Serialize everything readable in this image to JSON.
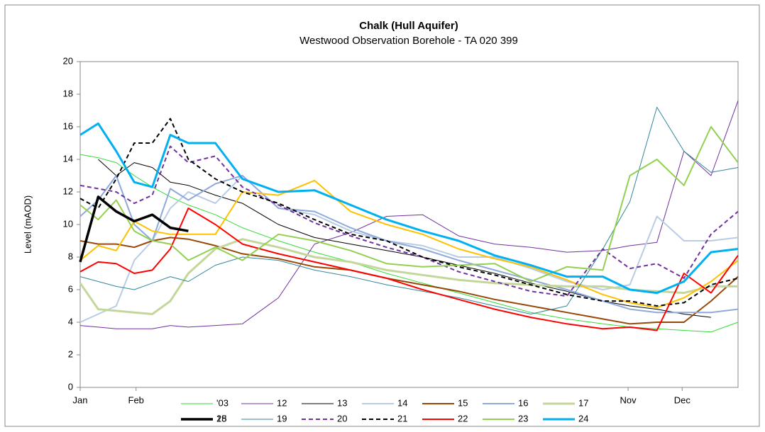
{
  "chart_data": {
    "type": "line",
    "title": "Chalk (Hull Aquifer)",
    "subtitle": "Westwood Observation Borehole - TA 020 399",
    "y_label": "Level (mAOD)",
    "x": [
      0,
      10,
      20,
      30,
      40,
      50,
      60,
      75,
      90,
      110,
      130,
      150,
      170,
      190,
      210,
      230,
      250,
      270,
      290,
      305,
      320,
      335,
      350,
      365
    ],
    "xlim": [
      0,
      365
    ],
    "xticks": [
      {
        "value": 0,
        "label": "Jan"
      },
      {
        "value": 31,
        "label": "Feb"
      },
      {
        "value": 304,
        "label": "Nov"
      },
      {
        "value": 334,
        "label": "Dec"
      }
    ],
    "ylim": [
      0,
      20
    ],
    "yticks": [
      0,
      2,
      4,
      6,
      8,
      10,
      12,
      14,
      16,
      18,
      20
    ],
    "grid": false,
    "legend": "bottom",
    "series": [
      {
        "name": "'03",
        "color": "#33dd33",
        "width": 1,
        "dash": false,
        "values": [
          14.3,
          14.1,
          13.8,
          13.0,
          12.3,
          11.7,
          11.2,
          10.6,
          9.8,
          9.0,
          8.3,
          7.7,
          7.0,
          6.4,
          5.8,
          5.2,
          4.6,
          4.2,
          3.9,
          3.7,
          3.6,
          3.5,
          3.4,
          4.0
        ]
      },
      {
        "name": "12",
        "color": "#7030a0",
        "width": 1,
        "dash": false,
        "values": [
          3.8,
          3.7,
          3.6,
          3.6,
          3.6,
          3.8,
          3.7,
          3.8,
          3.9,
          5.5,
          8.8,
          9.5,
          10.5,
          10.6,
          9.3,
          8.8,
          8.6,
          8.3,
          8.4,
          8.7,
          8.9,
          14.5,
          13.0,
          17.6
        ]
      },
      {
        "name": "13",
        "color": "#000000",
        "width": 1,
        "dash": false,
        "values": [
          null,
          14.0,
          13.0,
          13.8,
          13.5,
          12.6,
          12.4,
          11.8,
          11.3,
          10.0,
          9.2,
          8.8,
          8.4,
          8.0,
          7.5,
          7.0,
          6.4,
          5.9,
          5.3,
          5.0,
          4.8,
          4.5,
          4.3,
          null
        ]
      },
      {
        "name": "14",
        "color": "#b8cce4",
        "width": 2,
        "dash": false,
        "values": [
          4.0,
          4.5,
          5.0,
          7.8,
          9.0,
          11.0,
          12.0,
          11.3,
          13.0,
          11.0,
          10.6,
          9.6,
          9.0,
          8.7,
          8.0,
          8.0,
          7.3,
          6.5,
          6.0,
          6.3,
          10.5,
          9.0,
          9.0,
          9.2
        ]
      },
      {
        "name": "15",
        "color": "#974706",
        "width": 2,
        "dash": false,
        "values": [
          9.0,
          8.8,
          8.8,
          8.6,
          9.0,
          9.2,
          9.1,
          8.7,
          8.2,
          7.9,
          7.4,
          7.2,
          6.7,
          6.3,
          5.9,
          5.4,
          5.0,
          4.6,
          4.2,
          3.9,
          4.0,
          4.0,
          5.3,
          6.8
        ]
      },
      {
        "name": "16",
        "color": "#8ea9db",
        "width": 2,
        "dash": false,
        "values": [
          10.5,
          11.5,
          13.0,
          10.0,
          9.0,
          12.2,
          11.5,
          12.5,
          13.0,
          11.0,
          10.8,
          9.8,
          9.0,
          8.5,
          7.8,
          7.2,
          6.6,
          6.0,
          5.3,
          4.8,
          4.6,
          4.6,
          4.6,
          4.8
        ]
      },
      {
        "name": "17",
        "color": "#c4d79b",
        "width": 3,
        "dash": false,
        "values": [
          6.4,
          4.8,
          4.7,
          4.6,
          4.5,
          5.3,
          7.0,
          8.5,
          9.1,
          8.6,
          8.0,
          7.7,
          7.2,
          6.9,
          6.6,
          6.4,
          6.3,
          6.2,
          6.2,
          6.0,
          5.9,
          5.8,
          6.2,
          6.2
        ]
      },
      {
        "name": "18",
        "color": "#ffc000",
        "width": 2,
        "dash": false,
        "values": [
          7.8,
          8.7,
          8.4,
          10.2,
          9.6,
          9.4,
          9.4,
          9.4,
          12.0,
          11.8,
          12.7,
          10.8,
          10.0,
          9.4,
          8.5,
          7.9,
          7.4,
          6.6,
          5.7,
          5.2,
          4.9,
          5.5,
          6.5,
          7.8
        ]
      },
      {
        "name": "19",
        "color": "#31869b",
        "width": 1,
        "dash": false,
        "values": [
          6.8,
          6.5,
          6.2,
          6.0,
          6.4,
          6.8,
          6.5,
          7.5,
          8.0,
          7.8,
          7.2,
          6.8,
          6.3,
          5.9,
          5.5,
          5.0,
          4.5,
          5.0,
          8.5,
          11.4,
          17.2,
          14.5,
          13.2,
          13.5
        ]
      },
      {
        "name": "20",
        "color": "#7030a0",
        "width": 2,
        "dash": true,
        "values": [
          12.4,
          12.2,
          12.0,
          11.3,
          11.8,
          14.8,
          13.8,
          14.2,
          12.3,
          11.2,
          10.1,
          9.3,
          8.6,
          8.0,
          7.1,
          6.5,
          5.9,
          5.6,
          8.5,
          7.3,
          7.6,
          6.7,
          9.4,
          10.8
        ]
      },
      {
        "name": "21",
        "color": "#000000",
        "width": 2,
        "dash": true,
        "values": [
          11.6,
          11.0,
          12.8,
          15.0,
          15.0,
          16.5,
          14.0,
          12.8,
          12.0,
          11.3,
          10.3,
          9.4,
          9.0,
          8.0,
          7.4,
          6.9,
          6.3,
          5.7,
          5.3,
          5.3,
          5.0,
          5.2,
          6.3,
          6.7
        ]
      },
      {
        "name": "22",
        "color": "#ff0000",
        "width": 2,
        "dash": false,
        "values": [
          7.1,
          7.7,
          7.6,
          7.0,
          7.2,
          8.5,
          11.0,
          10.0,
          8.8,
          8.2,
          7.7,
          7.2,
          6.7,
          6.0,
          5.4,
          4.8,
          4.3,
          3.9,
          3.6,
          3.7,
          3.5,
          7.0,
          5.8,
          8.1
        ]
      },
      {
        "name": "23",
        "color": "#92d050",
        "width": 2,
        "dash": false,
        "values": [
          11.2,
          10.3,
          11.5,
          9.6,
          9.0,
          8.8,
          7.8,
          8.6,
          7.8,
          9.4,
          9.0,
          8.4,
          7.6,
          7.4,
          7.5,
          7.6,
          6.5,
          7.4,
          7.2,
          13.0,
          14.0,
          12.4,
          16.0,
          13.8
        ]
      },
      {
        "name": "24",
        "color": "#00b0f0",
        "width": 3,
        "dash": false,
        "values": [
          15.5,
          16.2,
          14.5,
          12.6,
          12.3,
          15.5,
          15.0,
          15.0,
          12.8,
          12.0,
          12.1,
          11.2,
          10.3,
          9.6,
          9.0,
          8.1,
          7.5,
          6.8,
          6.8,
          6.0,
          5.8,
          6.5,
          8.3,
          8.5
        ]
      },
      {
        "name": "25",
        "color": "#000000",
        "width": 3.5,
        "dash": false,
        "values": [
          7.7,
          11.7,
          10.8,
          10.2,
          10.6,
          9.8,
          9.6,
          null,
          null,
          null,
          null,
          null,
          null,
          null,
          null,
          null,
          null,
          null,
          null,
          null,
          null,
          null,
          null,
          null
        ]
      }
    ]
  }
}
